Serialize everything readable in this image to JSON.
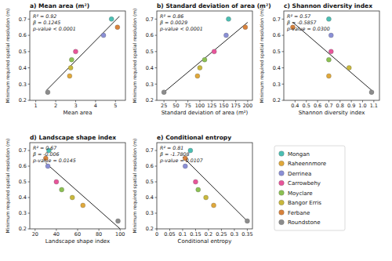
{
  "chart_data": [
    {
      "type": "scatter",
      "title": "a) Mean area (m²)",
      "x_label": "Mean area",
      "y_label": "Minimum required spatial resolution (m)",
      "annotations": [
        "R² = 0.92",
        "β = 0.1245",
        "p-value < 0.0001"
      ],
      "xlim": [
        0.7,
        5.5
      ],
      "xticks": [
        1,
        2,
        3,
        4,
        5
      ],
      "ylim": [
        0.2,
        0.75
      ],
      "yticks": [
        0.2,
        0.3,
        0.4,
        0.5,
        0.6,
        0.7
      ],
      "grid": false,
      "legend": "right",
      "fit": {
        "x": [
          1.55,
          5.2
        ],
        "y": [
          0.263,
          0.717
        ]
      },
      "series": [
        {
          "name": "Mongan",
          "color": "#4bbfb3",
          "x": [
            4.8
          ],
          "values": [
            0.7
          ]
        },
        {
          "name": "Raheennmore",
          "color": "#e0a83a",
          "x": [
            2.7
          ],
          "values": [
            0.35
          ]
        },
        {
          "name": "Derrinea",
          "color": "#8a8fd6",
          "x": [
            4.4
          ],
          "values": [
            0.6
          ]
        },
        {
          "name": "Carrowbehy",
          "color": "#e8559a",
          "x": [
            3.0
          ],
          "values": [
            0.5
          ]
        },
        {
          "name": "Moyclare",
          "color": "#8cc152",
          "x": [
            2.8
          ],
          "values": [
            0.45
          ]
        },
        {
          "name": "Bangor Erris",
          "color": "#c9b83c",
          "x": [
            2.75
          ],
          "values": [
            0.4
          ]
        },
        {
          "name": "Ferbane",
          "color": "#d9823b",
          "x": [
            5.1
          ],
          "values": [
            0.65
          ]
        },
        {
          "name": "Roundstone",
          "color": "#8c8c8c",
          "x": [
            1.6
          ],
          "values": [
            0.25
          ]
        }
      ]
    },
    {
      "type": "scatter",
      "title": "b) Standard deviation of area (m²)",
      "x_label": "Standard deviation of area (m²)",
      "y_label": "Minimum required spatial resolution (m)",
      "annotations": [
        "R² = 0.86",
        "β = 0.0029",
        "p-value < 0.0001"
      ],
      "xlim": [
        10,
        210
      ],
      "xticks": [
        25,
        50,
        75,
        100,
        125,
        150,
        175,
        200
      ],
      "ylim": [
        0.2,
        0.75
      ],
      "yticks": [
        0.2,
        0.3,
        0.4,
        0.5,
        0.6,
        0.7
      ],
      "grid": false,
      "fit": {
        "x": [
          25,
          200
        ],
        "y": [
          0.25,
          0.68
        ]
      },
      "series": [
        {
          "name": "Mongan",
          "color": "#4bbfb3",
          "x": [
            160
          ],
          "values": [
            0.7
          ]
        },
        {
          "name": "Raheennmore",
          "color": "#e0a83a",
          "x": [
            95
          ],
          "values": [
            0.35
          ]
        },
        {
          "name": "Derrinea",
          "color": "#8a8fd6",
          "x": [
            155
          ],
          "values": [
            0.6
          ]
        },
        {
          "name": "Carrowbehy",
          "color": "#e8559a",
          "x": [
            130
          ],
          "values": [
            0.5
          ]
        },
        {
          "name": "Moyclare",
          "color": "#8cc152",
          "x": [
            110
          ],
          "values": [
            0.45
          ]
        },
        {
          "name": "Bangor Erris",
          "color": "#c9b83c",
          "x": [
            100
          ],
          "values": [
            0.4
          ]
        },
        {
          "name": "Ferbane",
          "color": "#d9823b",
          "x": [
            195
          ],
          "values": [
            0.65
          ]
        },
        {
          "name": "Roundstone",
          "color": "#8c8c8c",
          "x": [
            25
          ],
          "values": [
            0.25
          ]
        }
      ]
    },
    {
      "type": "scatter",
      "title": "c) Shannon diversity index",
      "x_label": "Shannon diversity index",
      "y_label": "Minimum required spatial resolution (m)",
      "annotations": [
        "R² = 0.57",
        "β = -0.5857",
        "p-value = 0.0300"
      ],
      "xlim": [
        0.3,
        1.15
      ],
      "xticks": [
        0.4,
        0.5,
        0.6,
        0.7,
        0.8,
        0.9,
        {
          "value": 1.0,
          "label": "1.0"
        },
        1.1
      ],
      "ylim": [
        0.2,
        0.75
      ],
      "yticks": [
        0.2,
        0.3,
        0.4,
        0.5,
        0.6,
        0.7
      ],
      "grid": false,
      "fit": {
        "x": [
          0.38,
          1.1
        ],
        "y": [
          0.68,
          0.25
        ]
      },
      "series": [
        {
          "name": "Mongan",
          "color": "#4bbfb3",
          "x": [
            0.7
          ],
          "values": [
            0.7
          ]
        },
        {
          "name": "Raheennmore",
          "color": "#e0a83a",
          "x": [
            0.7
          ],
          "values": [
            0.35
          ]
        },
        {
          "name": "Derrinea",
          "color": "#8a8fd6",
          "x": [
            0.72
          ],
          "values": [
            0.6
          ]
        },
        {
          "name": "Carrowbehy",
          "color": "#e8559a",
          "x": [
            0.72
          ],
          "values": [
            0.5
          ]
        },
        {
          "name": "Moyclare",
          "color": "#8cc152",
          "x": [
            0.7
          ],
          "values": [
            0.45
          ]
        },
        {
          "name": "Bangor Erris",
          "color": "#c9b83c",
          "x": [
            0.88
          ],
          "values": [
            0.4
          ]
        },
        {
          "name": "Ferbane",
          "color": "#d9823b",
          "x": [
            0.38
          ],
          "values": [
            0.65
          ]
        },
        {
          "name": "Roundstone",
          "color": "#8c8c8c",
          "x": [
            1.08
          ],
          "values": [
            0.25
          ]
        }
      ]
    },
    {
      "type": "scatter",
      "title": "d) Landscape shape index",
      "x_label": "Landscape shape index",
      "y_label": "Minimum required spatial resolution (m)",
      "annotations": [
        "R² = 0.67",
        "β = -0.006",
        "p-value = 0.0145"
      ],
      "xlim": [
        15,
        105
      ],
      "xticks": [
        20,
        40,
        60,
        80,
        100
      ],
      "ylim": [
        0.2,
        0.75
      ],
      "yticks": [
        0.2,
        0.3,
        0.4,
        0.5,
        0.6,
        0.7
      ],
      "grid": false,
      "fit": {
        "x": [
          30,
          100
        ],
        "y": [
          0.62,
          0.2
        ]
      },
      "series": [
        {
          "name": "Mongan",
          "color": "#4bbfb3",
          "x": [
            33
          ],
          "values": [
            0.7
          ]
        },
        {
          "name": "Raheennmore",
          "color": "#e0a83a",
          "x": [
            65
          ],
          "values": [
            0.35
          ]
        },
        {
          "name": "Derrinea",
          "color": "#8a8fd6",
          "x": [
            32
          ],
          "values": [
            0.6
          ]
        },
        {
          "name": "Carrowbehy",
          "color": "#e8559a",
          "x": [
            40
          ],
          "values": [
            0.5
          ]
        },
        {
          "name": "Moyclare",
          "color": "#8cc152",
          "x": [
            45
          ],
          "values": [
            0.45
          ]
        },
        {
          "name": "Bangor Erris",
          "color": "#c9b83c",
          "x": [
            55
          ],
          "values": [
            0.4
          ]
        },
        {
          "name": "Ferbane",
          "color": "#d9823b",
          "x": [
            30
          ],
          "values": [
            0.65
          ]
        },
        {
          "name": "Roundstone",
          "color": "#8c8c8c",
          "x": [
            98
          ],
          "values": [
            0.25
          ]
        }
      ]
    },
    {
      "type": "scatter",
      "title": "e) Conditional entropy",
      "x_label": "Conditional entropy",
      "y_label": "Minimum required spatial resolution (m)",
      "annotations": [
        "R² = 0.81",
        "β = -1.7808",
        "p-value = 0.0107"
      ],
      "xlim": [
        0,
        0.37
      ],
      "xticks": [
        0,
        0.05,
        0.1,
        0.15,
        0.2,
        0.25,
        0.3,
        0.35
      ],
      "ylim": [
        0.2,
        0.75
      ],
      "yticks": [
        0.2,
        0.3,
        0.4,
        0.5,
        0.6,
        0.7
      ],
      "grid": false,
      "fit": {
        "x": [
          0.1,
          0.35
        ],
        "y": [
          0.66,
          0.25
        ]
      },
      "series": [
        {
          "name": "Mongan",
          "color": "#4bbfb3",
          "x": [
            0.13
          ],
          "values": [
            0.7
          ]
        },
        {
          "name": "Raheennmore",
          "color": "#e0a83a",
          "x": [
            0.22
          ],
          "values": [
            0.35
          ]
        },
        {
          "name": "Derrinea",
          "color": "#8a8fd6",
          "x": [
            0.11
          ],
          "values": [
            0.6
          ]
        },
        {
          "name": "Carrowbehy",
          "color": "#e8559a",
          "x": [
            0.15
          ],
          "values": [
            0.5
          ]
        },
        {
          "name": "Moyclare",
          "color": "#8cc152",
          "x": [
            0.16
          ],
          "values": [
            0.45
          ]
        },
        {
          "name": "Bangor Erris",
          "color": "#c9b83c",
          "x": [
            0.19
          ],
          "values": [
            0.4
          ]
        },
        {
          "name": "Ferbane",
          "color": "#d9823b",
          "x": [
            0.11
          ],
          "values": [
            0.65
          ]
        },
        {
          "name": "Roundstone",
          "color": "#8c8c8c",
          "x": [
            0.35
          ],
          "values": [
            0.25
          ]
        }
      ]
    }
  ]
}
